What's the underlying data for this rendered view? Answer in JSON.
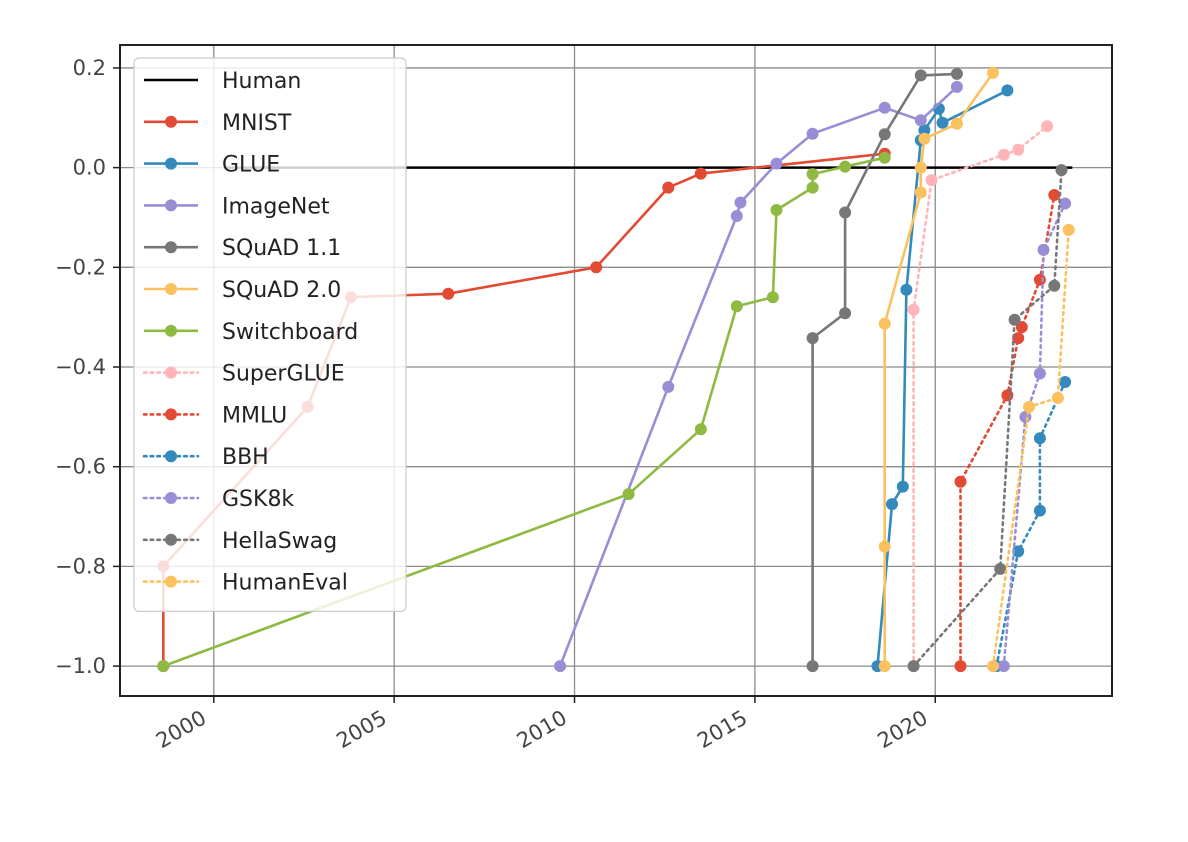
{
  "chart_data": {
    "type": "line",
    "title": "",
    "xlabel": "",
    "ylabel": "",
    "xlim": [
      1997.4,
      2024.9
    ],
    "ylim": [
      -1.06,
      0.246
    ],
    "x_ticks": [
      2000,
      2005,
      2010,
      2015,
      2020
    ],
    "x_tick_labels": [
      "2000",
      "2005",
      "2010",
      "2015",
      "2020"
    ],
    "y_ticks": [
      0.2,
      0.0,
      -0.2,
      -0.4,
      -0.6,
      -0.8,
      -1.0
    ],
    "y_tick_labels": [
      "0.2",
      "0.0",
      "−0.2",
      "−0.4",
      "−0.6",
      "−0.8",
      "−1.0"
    ],
    "grid": true,
    "legend_position": "upper-left",
    "human_line": {
      "name": "Human",
      "y": 0.0,
      "x_range": [
        2000.3,
        2023.8
      ],
      "color": "#000000"
    },
    "series": [
      {
        "name": "MNIST",
        "style": "solid",
        "color": "#e24a33",
        "x": [
          1998.6,
          1998.6,
          2002.6,
          2003.8,
          2006.5,
          2010.6,
          2012.6,
          2013.5,
          2018.6
        ],
        "y": [
          -1.0,
          -0.8,
          -0.48,
          -0.26,
          -0.253,
          -0.2,
          -0.04,
          -0.012,
          0.028
        ]
      },
      {
        "name": "GLUE",
        "style": "solid",
        "color": "#348abd",
        "x": [
          2018.4,
          2018.8,
          2019.1,
          2019.2,
          2019.6,
          2019.7,
          2020.1,
          2020.2,
          2022.0
        ],
        "y": [
          -1.0,
          -0.675,
          -0.64,
          -0.245,
          0.055,
          0.075,
          0.118,
          0.09,
          0.155
        ]
      },
      {
        "name": "ImageNet",
        "style": "solid",
        "color": "#988ed5",
        "x": [
          2009.6,
          2012.6,
          2014.5,
          2014.6,
          2015.6,
          2016.6,
          2018.6,
          2019.6,
          2020.6
        ],
        "y": [
          -1.0,
          -0.44,
          -0.097,
          -0.07,
          0.008,
          0.068,
          0.12,
          0.095,
          0.162
        ]
      },
      {
        "name": "SQuAD 1.1",
        "style": "solid",
        "color": "#777777",
        "x": [
          2016.6,
          2016.6,
          2017.5,
          2017.5,
          2018.6,
          2019.6,
          2020.6
        ],
        "y": [
          -1.0,
          -0.342,
          -0.292,
          -0.09,
          0.067,
          0.185,
          0.188
        ]
      },
      {
        "name": "SQuAD 2.0",
        "style": "solid",
        "color": "#fbc15e",
        "x": [
          2018.6,
          2018.6,
          2018.6,
          2019.6,
          2019.6,
          2019.7,
          2020.6,
          2021.6
        ],
        "y": [
          -1.0,
          -0.76,
          -0.313,
          -0.05,
          0.0,
          0.058,
          0.088,
          0.19
        ]
      },
      {
        "name": "Switchboard",
        "style": "solid",
        "color": "#8eba42",
        "x": [
          1998.6,
          2011.5,
          2013.5,
          2014.5,
          2015.5,
          2015.6,
          2016.6,
          2016.6,
          2017.5,
          2018.6
        ],
        "y": [
          -1.0,
          -0.655,
          -0.525,
          -0.278,
          -0.26,
          -0.085,
          -0.04,
          -0.013,
          0.002,
          0.02
        ]
      },
      {
        "name": "SuperGLUE",
        "style": "dotted",
        "color": "#ffb5b8",
        "x": [
          2019.4,
          2019.4,
          2019.9,
          2021.9,
          2022.3,
          2023.1
        ],
        "y": [
          -1.0,
          -0.285,
          -0.025,
          0.026,
          0.036,
          0.083
        ]
      },
      {
        "name": "MMLU",
        "style": "dotted",
        "color": "#e24a33",
        "x": [
          2020.7,
          2020.7,
          2022.0,
          2022.3,
          2022.4,
          2022.9,
          2023.3
        ],
        "y": [
          -1.0,
          -0.63,
          -0.457,
          -0.342,
          -0.32,
          -0.225,
          -0.055
        ]
      },
      {
        "name": "BBH",
        "style": "dotted",
        "color": "#348abd",
        "x": [
          2021.7,
          2022.3,
          2022.9,
          2022.9,
          2023.6
        ],
        "y": [
          -1.0,
          -0.77,
          -0.688,
          -0.543,
          -0.43
        ]
      },
      {
        "name": "GSK8k",
        "style": "dotted",
        "color": "#988ed5",
        "x": [
          2021.9,
          2022.5,
          2022.9,
          2023.0,
          2023.6
        ],
        "y": [
          -1.0,
          -0.5,
          -0.413,
          -0.165,
          -0.072
        ]
      },
      {
        "name": "HellaSwag",
        "style": "dotted",
        "color": "#777777",
        "x": [
          2019.4,
          2021.8,
          2022.2,
          2023.3,
          2023.5
        ],
        "y": [
          -1.0,
          -0.805,
          -0.305,
          -0.237,
          -0.005
        ]
      },
      {
        "name": "HumanEval",
        "style": "dotted",
        "color": "#fbc15e",
        "x": [
          2021.6,
          2022.6,
          2023.4,
          2023.7
        ],
        "y": [
          -1.0,
          -0.48,
          -0.462,
          -0.125
        ]
      }
    ]
  }
}
